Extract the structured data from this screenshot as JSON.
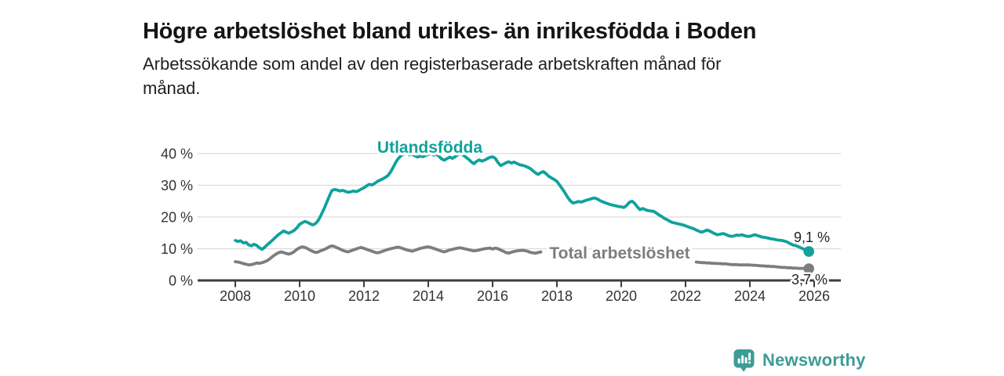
{
  "footer": {
    "brand": "Newsworthy",
    "logo_color": "#3E9C95",
    "logo_icon": "bar-chart-speech-bubble"
  },
  "colors": {
    "accent_teal": "#10A29B",
    "series_gray": "#7D7D7D",
    "ink": "#333333",
    "grid": "#DCDCDC",
    "axis": "#3C3C3C",
    "value_label": "#222222"
  },
  "chart_data": {
    "type": "line",
    "title": "Högre arbetslöshet bland utrikes- än inrikesfödda i Boden",
    "subtitle_lines": [
      "Arbetssökande som andel av den registerbaserade arbetskraften månad för",
      "månad."
    ],
    "xlabel": "",
    "ylabel": "",
    "unit": "%",
    "grid": "horizontal",
    "legend": "inline-labels",
    "xlim": [
      2006.8,
      2026.8
    ],
    "ylim": [
      0,
      42
    ],
    "start_year": 2008,
    "points_per_year": 12,
    "x_ticks": [
      {
        "v": 2008,
        "label": "2008"
      },
      {
        "v": 2010,
        "label": "2010"
      },
      {
        "v": 2012,
        "label": "2012"
      },
      {
        "v": 2014,
        "label": "2014"
      },
      {
        "v": 2016,
        "label": "2016"
      },
      {
        "v": 2018,
        "label": "2018"
      },
      {
        "v": 2020,
        "label": "2020"
      },
      {
        "v": 2022,
        "label": "2022"
      },
      {
        "v": 2024,
        "label": "2024"
      },
      {
        "v": 2026,
        "label": "2026"
      }
    ],
    "y_ticks": [
      {
        "v": 0,
        "label": "0 %"
      },
      {
        "v": 10,
        "label": "10 %"
      },
      {
        "v": 20,
        "label": "20 %"
      },
      {
        "v": 30,
        "label": "30 %"
      },
      {
        "v": 40,
        "label": "40 %"
      }
    ],
    "series": [
      {
        "name": "Utlandsfödda",
        "key": "utlandsfodda",
        "color": "#10A29B",
        "end_value": 9.1,
        "end_label": "9,1 %",
        "values": [
          12.6,
          12.3,
          12.5,
          11.8,
          12.0,
          11.2,
          10.9,
          11.4,
          11.0,
          10.3,
          9.8,
          10.5,
          11.3,
          12.0,
          12.8,
          13.6,
          14.4,
          15.0,
          15.6,
          15.2,
          14.9,
          15.3,
          15.8,
          16.6,
          17.7,
          18.2,
          18.6,
          18.3,
          17.8,
          17.5,
          18.0,
          19.0,
          20.6,
          22.4,
          24.4,
          26.4,
          28.3,
          28.7,
          28.5,
          28.2,
          28.4,
          28.1,
          27.8,
          27.9,
          28.2,
          28.0,
          28.3,
          28.8,
          29.2,
          29.8,
          30.3,
          30.1,
          30.6,
          31.2,
          31.6,
          32.0,
          32.5,
          33.1,
          34.3,
          35.8,
          37.4,
          38.6,
          39.4,
          39.9,
          40.1,
          39.6,
          39.8,
          39.3,
          38.9,
          39.2,
          39.0,
          39.4,
          39.7,
          40.0,
          39.5,
          39.8,
          39.1,
          38.3,
          37.9,
          38.4,
          38.9,
          38.5,
          39.0,
          39.6,
          39.9,
          39.5,
          38.9,
          38.2,
          37.4,
          36.8,
          37.5,
          38.0,
          37.6,
          37.9,
          38.4,
          38.8,
          39.0,
          38.5,
          37.2,
          36.2,
          36.6,
          37.1,
          37.4,
          37.0,
          37.3,
          36.9,
          36.5,
          36.3,
          36.1,
          35.7,
          35.3,
          34.6,
          33.9,
          33.4,
          34.0,
          34.3,
          33.6,
          32.8,
          32.3,
          31.8,
          31.2,
          30.1,
          28.9,
          27.6,
          26.2,
          25.1,
          24.4,
          24.6,
          24.9,
          24.7,
          25.0,
          25.3,
          25.5,
          25.8,
          26.0,
          25.7,
          25.2,
          24.8,
          24.5,
          24.2,
          23.9,
          23.7,
          23.5,
          23.3,
          23.2,
          23.0,
          23.6,
          24.6,
          25.0,
          24.3,
          23.2,
          22.3,
          22.7,
          22.3,
          22.0,
          21.9,
          21.8,
          21.3,
          20.7,
          20.2,
          19.6,
          19.2,
          18.7,
          18.3,
          18.1,
          17.9,
          17.7,
          17.5,
          17.2,
          16.9,
          16.6,
          16.3,
          15.9,
          15.5,
          15.2,
          15.5,
          15.9,
          15.6,
          15.1,
          14.7,
          14.4,
          14.6,
          14.8,
          14.5,
          14.1,
          13.9,
          14.0,
          14.3,
          14.2,
          14.4,
          14.1,
          13.9,
          13.9,
          14.2,
          14.4,
          14.1,
          13.8,
          13.6,
          13.5,
          13.3,
          13.1,
          13.0,
          12.8,
          12.7,
          12.6,
          12.4,
          12.1,
          11.6,
          11.2,
          11.0,
          10.7,
          10.3,
          9.9,
          9.5,
          9.1
        ]
      },
      {
        "name": "Total arbetslöshet",
        "key": "total",
        "color": "#7D7D7D",
        "end_value": 3.7,
        "end_label": "3,7 %",
        "values": [
          5.9,
          5.8,
          5.6,
          5.3,
          5.1,
          4.9,
          5.0,
          5.2,
          5.5,
          5.4,
          5.6,
          5.9,
          6.3,
          6.9,
          7.6,
          8.2,
          8.7,
          9.0,
          8.8,
          8.5,
          8.3,
          8.6,
          9.1,
          9.8,
          10.3,
          10.6,
          10.4,
          10.0,
          9.5,
          9.1,
          8.8,
          9.0,
          9.4,
          9.7,
          10.1,
          10.6,
          10.9,
          10.7,
          10.3,
          9.9,
          9.5,
          9.2,
          9.0,
          9.3,
          9.6,
          9.9,
          10.2,
          10.4,
          10.1,
          9.8,
          9.5,
          9.2,
          8.9,
          8.7,
          8.9,
          9.2,
          9.5,
          9.8,
          10.0,
          10.2,
          10.4,
          10.5,
          10.2,
          9.9,
          9.6,
          9.4,
          9.2,
          9.5,
          9.8,
          10.1,
          10.3,
          10.5,
          10.6,
          10.4,
          10.1,
          9.8,
          9.5,
          9.2,
          9.0,
          9.3,
          9.6,
          9.8,
          10.0,
          10.2,
          10.3,
          10.1,
          9.9,
          9.7,
          9.5,
          9.3,
          9.4,
          9.6,
          9.8,
          10.0,
          10.1,
          10.2,
          9.9,
          10.2,
          10.0,
          9.6,
          9.2,
          8.8,
          8.6,
          8.9,
          9.1,
          9.3,
          9.4,
          9.5,
          9.4,
          9.2,
          8.9,
          8.7,
          8.6,
          8.8,
          9.0,
          null,
          null,
          null,
          null,
          null,
          null,
          null,
          null,
          null,
          null,
          null,
          null,
          null,
          null,
          null,
          null,
          null,
          null,
          null,
          null,
          null,
          null,
          null,
          null,
          null,
          null,
          null,
          null,
          null,
          null,
          null,
          null,
          null,
          null,
          null,
          null,
          null,
          null,
          null,
          null,
          null,
          null,
          null,
          null,
          null,
          null,
          null,
          null,
          null,
          null,
          null,
          null,
          null,
          null,
          null,
          null,
          null,
          5.8,
          5.7,
          5.6,
          5.6,
          5.5,
          5.5,
          5.4,
          5.4,
          5.3,
          5.3,
          5.2,
          5.2,
          5.1,
          5.0,
          5.0,
          5.0,
          4.9,
          4.9,
          4.9,
          4.9,
          4.9,
          4.8,
          4.8,
          4.7,
          4.6,
          4.6,
          4.5,
          4.5,
          4.4,
          4.4,
          4.3,
          4.2,
          4.1,
          4.1,
          4.0,
          4.0,
          3.9,
          3.9,
          3.8,
          3.8,
          3.8,
          3.7,
          3.7
        ]
      }
    ]
  }
}
